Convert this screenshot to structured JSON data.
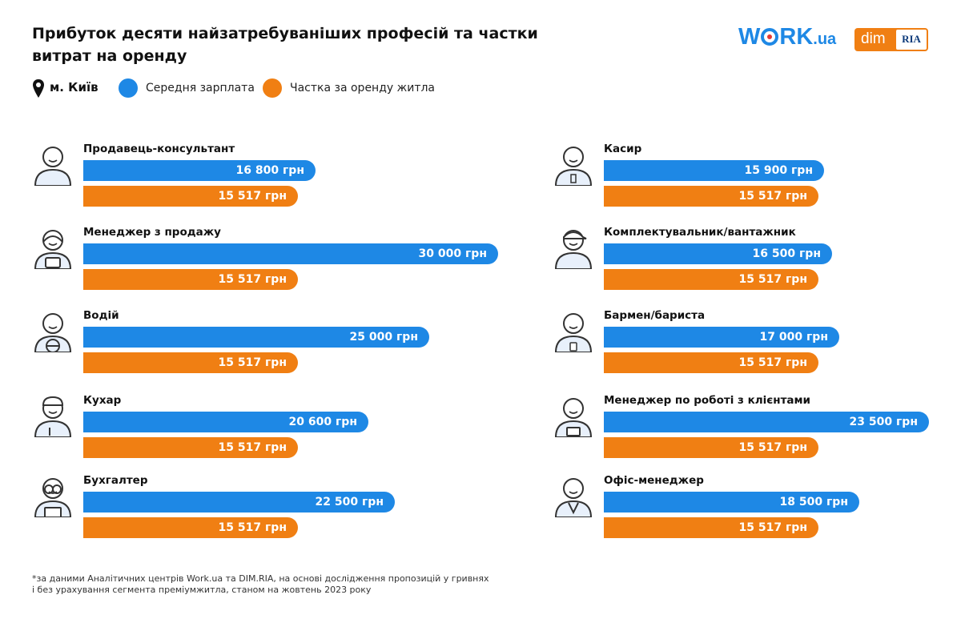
{
  "header": {
    "title": "Прибуток десяти найзатребуваніших професій та частки витрат на оренду",
    "logo_work_prefix": "W",
    "logo_work_suffix": "RK",
    "logo_work_domain": ".ua",
    "logo_dim": "dim",
    "logo_ria": "RIA"
  },
  "legend": {
    "city": "м. Київ",
    "salary_label": "Середня зарплата",
    "rent_label": "Частка за оренду житла"
  },
  "colors": {
    "salary": "#1e88e5",
    "rent": "#f07f13"
  },
  "chart_data": {
    "type": "bar",
    "orientation": "horizontal",
    "unit": "грн",
    "series": [
      {
        "name": "Середня зарплата",
        "key": "salary"
      },
      {
        "name": "Частка за оренду житла",
        "key": "rent"
      }
    ],
    "items": [
      {
        "profession": "Продавець-консультант",
        "icon": "salesperson-icon",
        "salary": 16800,
        "salary_label": "16 800 грн",
        "rent": 15517,
        "rent_label": "15 517 грн"
      },
      {
        "profession": "Менеджер з продажу",
        "icon": "sales-manager-icon",
        "salary": 30000,
        "salary_label": "30 000 грн",
        "rent": 15517,
        "rent_label": "15 517 грн"
      },
      {
        "profession": "Водій",
        "icon": "driver-icon",
        "salary": 25000,
        "salary_label": "25 000 грн",
        "rent": 15517,
        "rent_label": "15 517 грн"
      },
      {
        "profession": "Кухар",
        "icon": "cook-icon",
        "salary": 20600,
        "salary_label": "20 600 грн",
        "rent": 15517,
        "rent_label": "15 517 грн"
      },
      {
        "profession": "Бухгалтер",
        "icon": "accountant-icon",
        "salary": 22500,
        "salary_label": "22 500 грн",
        "rent": 15517,
        "rent_label": "15 517 грн"
      },
      {
        "profession": "Касир",
        "icon": "cashier-icon",
        "salary": 15900,
        "salary_label": "15 900 грн",
        "rent": 15517,
        "rent_label": "15 517 грн"
      },
      {
        "profession": "Комплектувальник/вантажник",
        "icon": "loader-icon",
        "salary": 16500,
        "salary_label": "16 500 грн",
        "rent": 15517,
        "rent_label": "15 517 грн"
      },
      {
        "profession": "Бармен/бариста",
        "icon": "barista-icon",
        "salary": 17000,
        "salary_label": "17 000 грн",
        "rent": 15517,
        "rent_label": "15 517 грн"
      },
      {
        "profession": "Менеджер по роботі з клієнтами",
        "icon": "client-manager-icon",
        "salary": 23500,
        "salary_label": "23 500 грн",
        "rent": 15517,
        "rent_label": "15 517 грн"
      },
      {
        "profession": "Офіс-менеджер",
        "icon": "office-manager-icon",
        "salary": 18500,
        "salary_label": "18 500 грн",
        "rent": 15517,
        "rent_label": "15 517 грн"
      }
    ]
  },
  "footnote": {
    "line1": "*за даними Аналітичних центрів Work.ua та DIM.RIA, на основі дослідження пропозицій у гривнях",
    "line2": "і без урахування сегмента преміумжитла, станом на жовтень 2023 року"
  }
}
